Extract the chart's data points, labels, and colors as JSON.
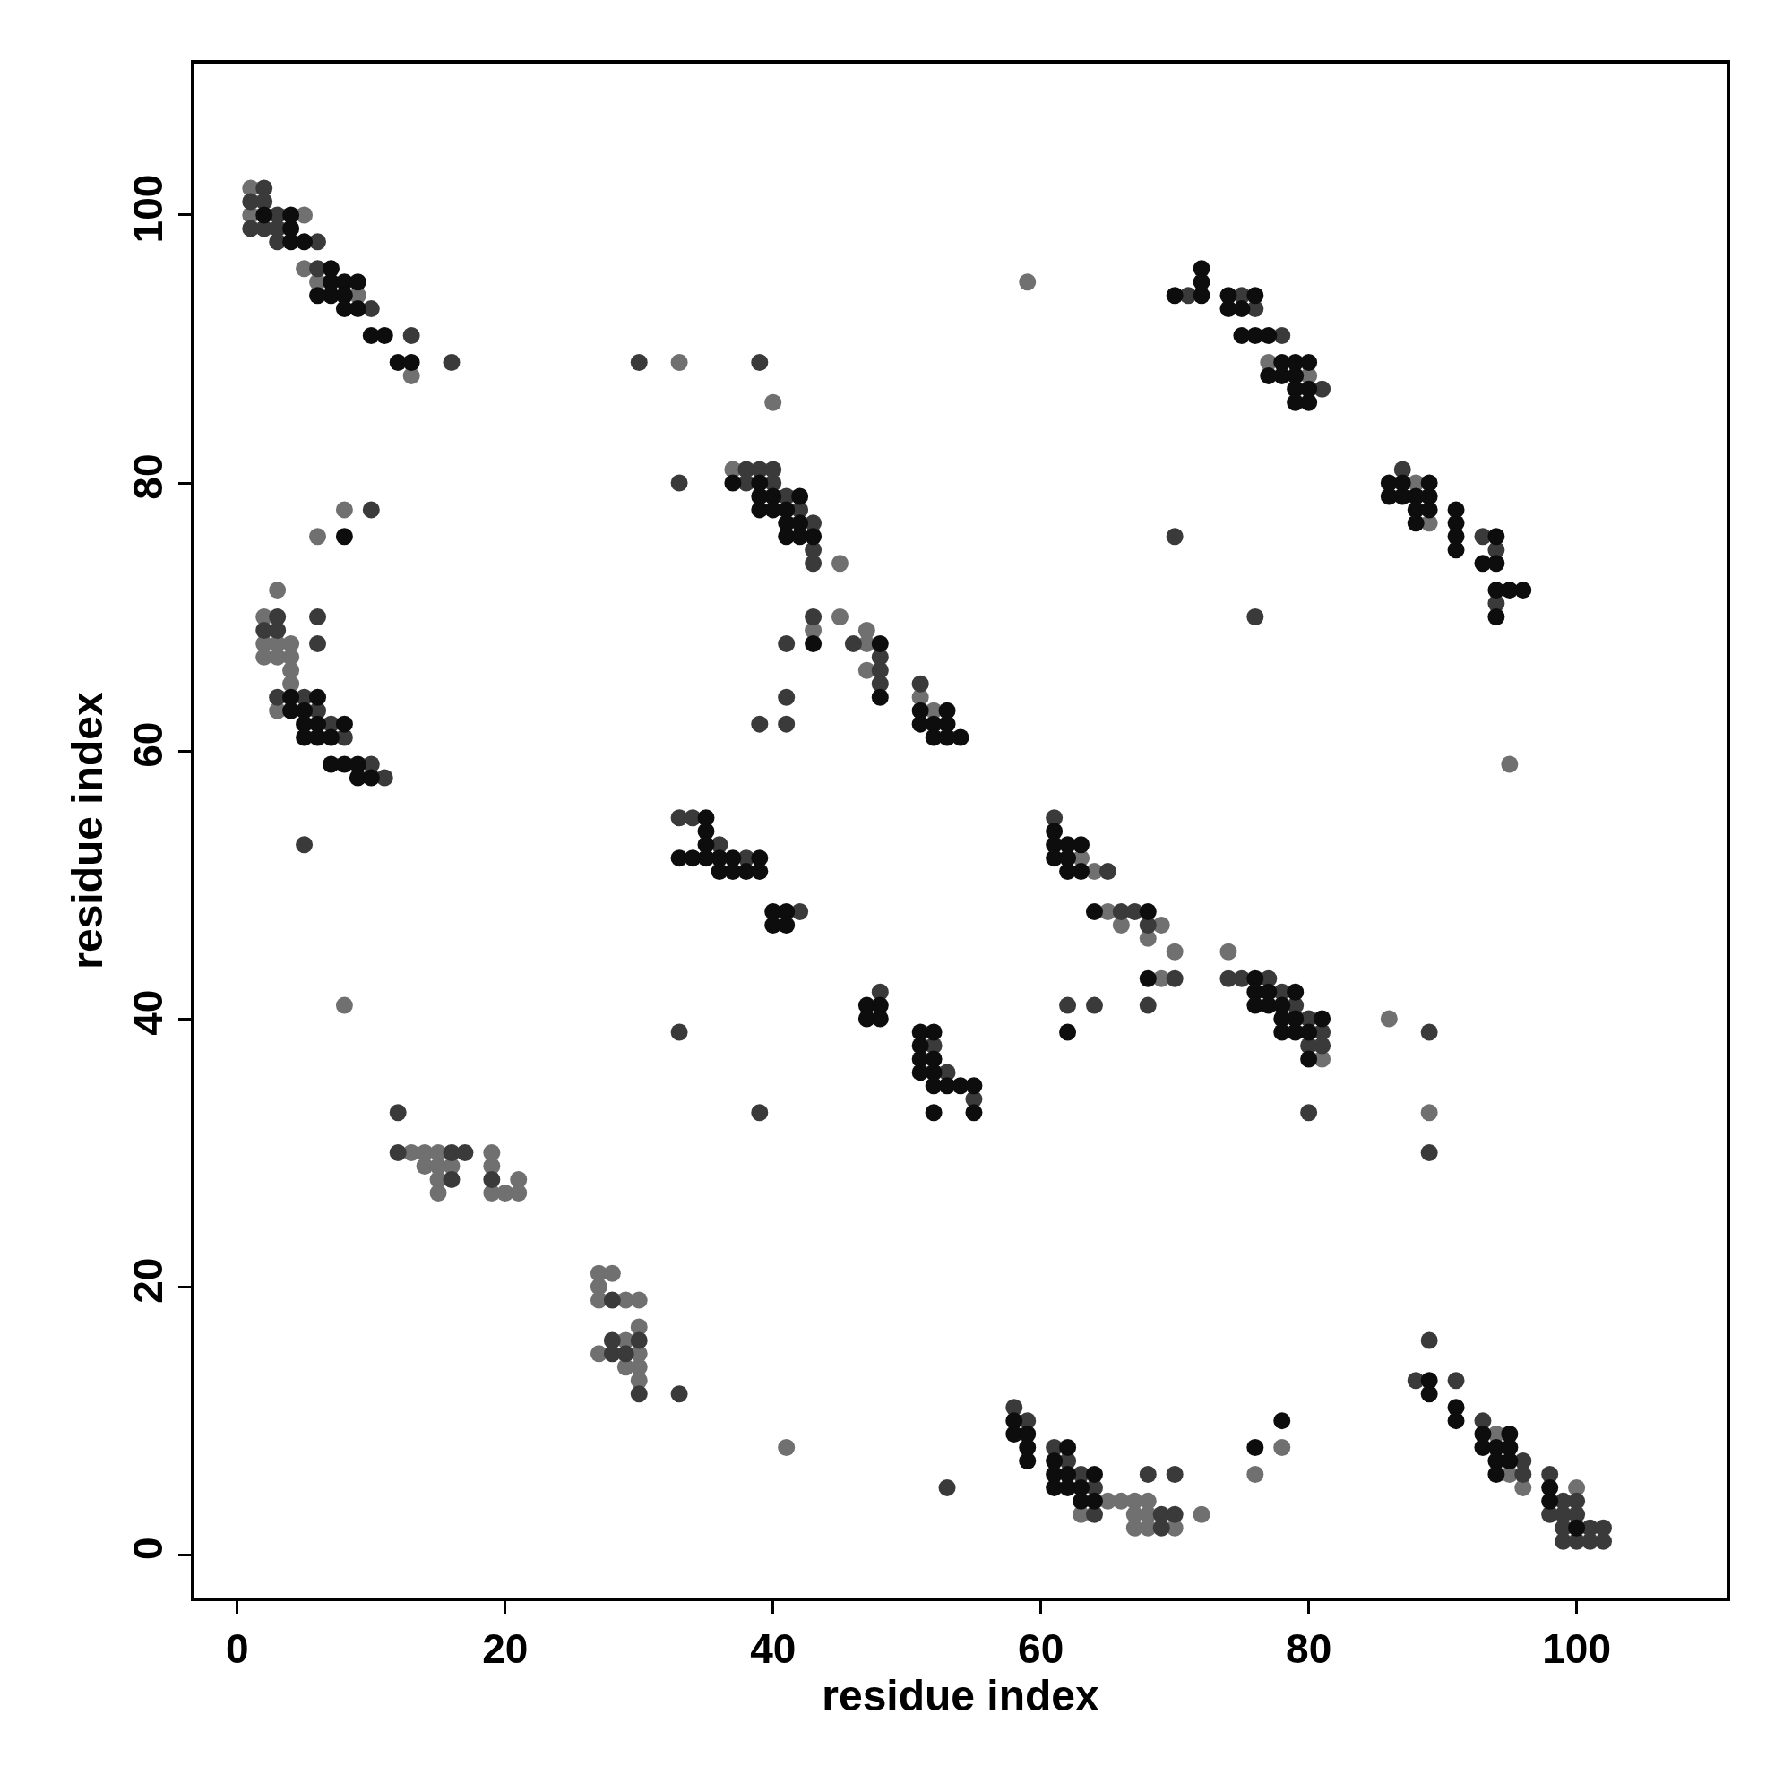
{
  "chart_data": {
    "type": "scatter",
    "xlabel": "residue index",
    "ylabel": "residue index",
    "xlim": [
      -3.2,
      111.2
    ],
    "ylim": [
      -3.2,
      111.3
    ],
    "xticks": [
      0,
      20,
      40,
      60,
      80,
      100
    ],
    "yticks": [
      0,
      20,
      40,
      60,
      80,
      100
    ],
    "marker": "circle",
    "series": [
      {
        "color": "#707070",
        "x": [
          1,
          1,
          5,
          5,
          6,
          9,
          33,
          13,
          40,
          59,
          8,
          6,
          3,
          2,
          2,
          3,
          4,
          2,
          3,
          4,
          4,
          4,
          3,
          77,
          80,
          88,
          89,
          95,
          37,
          45,
          45,
          43,
          47,
          47,
          47,
          51,
          52,
          63,
          64,
          65,
          66,
          69,
          68,
          70,
          74,
          69,
          86,
          81,
          89,
          8,
          13,
          14,
          15,
          19,
          14,
          15,
          16,
          19,
          15,
          21,
          15,
          19,
          20,
          21,
          27,
          28,
          27,
          27,
          29,
          30,
          30,
          29,
          27,
          30,
          29,
          30,
          30,
          41,
          94,
          78,
          76,
          95,
          96,
          100,
          65,
          66,
          67,
          68,
          63,
          67,
          68,
          72,
          67,
          68,
          70
        ],
        "values": [
          102,
          100,
          100,
          96,
          95,
          94,
          89,
          88,
          86,
          95,
          78,
          76,
          72,
          70,
          68,
          68,
          68,
          67,
          67,
          67,
          66,
          65,
          63,
          89,
          88,
          80,
          77,
          59,
          81,
          74,
          70,
          69,
          69,
          68,
          66,
          64,
          63,
          52,
          51,
          48,
          47,
          47,
          46,
          45,
          45,
          43,
          40,
          37,
          33,
          41,
          30,
          30,
          30,
          30,
          29,
          29,
          29,
          29,
          28,
          28,
          27,
          27,
          27,
          27,
          21,
          21,
          20,
          19,
          19,
          19,
          17,
          16,
          15,
          15,
          14,
          14,
          13,
          8,
          9,
          8,
          6,
          6,
          5,
          5,
          4,
          4,
          4,
          4,
          3,
          3,
          3,
          3,
          2,
          2,
          2
        ]
      },
      {
        "color": "#3a3a3a",
        "x": [
          2,
          1,
          2,
          3,
          1,
          2,
          3,
          3,
          6,
          6,
          10,
          13,
          16,
          30,
          39,
          10,
          33,
          3,
          6,
          2,
          3,
          6,
          3,
          5,
          6,
          7,
          8,
          10,
          11,
          5,
          71,
          75,
          76,
          78,
          81,
          87,
          70,
          76,
          93,
          94,
          94,
          38,
          39,
          40,
          38,
          40,
          41,
          42,
          43,
          43,
          43,
          43,
          41,
          46,
          48,
          48,
          48,
          41,
          39,
          41,
          51,
          33,
          34,
          36,
          38,
          65,
          61,
          42,
          48,
          33,
          12,
          39,
          12,
          16,
          17,
          16,
          19,
          28,
          28,
          30,
          28,
          29,
          30,
          33,
          53,
          52,
          55,
          66,
          67,
          68,
          70,
          74,
          75,
          77,
          78,
          62,
          64,
          68,
          79,
          80,
          81,
          89,
          80,
          81,
          80,
          89,
          89,
          88,
          91,
          58,
          59,
          93,
          61,
          62,
          96,
          63,
          68,
          70,
          96,
          98,
          53,
          64,
          99,
          100,
          64,
          69,
          70,
          98,
          99,
          100,
          69,
          99,
          101,
          102,
          99,
          100,
          101,
          102
        ],
        "values": [
          102,
          101,
          101,
          100,
          99,
          99,
          99,
          98,
          98,
          96,
          93,
          91,
          89,
          89,
          89,
          78,
          80,
          70,
          70,
          69,
          69,
          68,
          64,
          64,
          63,
          62,
          61,
          59,
          58,
          53,
          94,
          94,
          93,
          91,
          87,
          81,
          76,
          70,
          76,
          75,
          71,
          81,
          81,
          81,
          80,
          80,
          79,
          78,
          77,
          75,
          74,
          70,
          68,
          68,
          67,
          66,
          65,
          64,
          62,
          62,
          65,
          55,
          55,
          53,
          52,
          51,
          55,
          48,
          42,
          39,
          33,
          33,
          30,
          30,
          30,
          28,
          28,
          19,
          16,
          16,
          15,
          15,
          12,
          12,
          36,
          38,
          34,
          48,
          48,
          47,
          43,
          43,
          43,
          43,
          42,
          41,
          41,
          41,
          41,
          40,
          39,
          39,
          38,
          38,
          33,
          30,
          16,
          13,
          13,
          11,
          10,
          10,
          8,
          7,
          7,
          6,
          6,
          6,
          6,
          6,
          5,
          5,
          4,
          4,
          3,
          3,
          3,
          3,
          3,
          3,
          2,
          2,
          2,
          2,
          1,
          1,
          1,
          1
        ]
      },
      {
        "color": "#0d0d0d",
        "x": [
          2,
          4,
          4,
          4,
          5,
          7,
          7,
          8,
          9,
          7,
          8,
          6,
          8,
          9,
          10,
          11,
          12,
          13,
          8,
          4,
          6,
          4,
          5,
          5,
          6,
          8,
          5,
          6,
          7,
          7,
          8,
          9,
          9,
          10,
          72,
          72,
          70,
          72,
          74,
          76,
          74,
          75,
          75,
          76,
          77,
          78,
          79,
          80,
          77,
          78,
          79,
          79,
          80,
          79,
          80,
          86,
          87,
          89,
          86,
          87,
          88,
          89,
          88,
          89,
          88,
          91,
          91,
          91,
          91,
          94,
          93,
          94,
          94,
          95,
          96,
          94,
          37,
          39,
          39,
          40,
          42,
          39,
          40,
          41,
          41,
          42,
          41,
          42,
          43,
          43,
          48,
          48,
          51,
          53,
          51,
          52,
          53,
          52,
          53,
          54,
          35,
          35,
          35,
          33,
          34,
          35,
          36,
          37,
          39,
          36,
          37,
          38,
          39,
          61,
          61,
          62,
          63,
          61,
          62,
          62,
          63,
          40,
          41,
          40,
          41,
          47,
          48,
          47,
          48,
          51,
          52,
          51,
          51,
          52,
          51,
          52,
          52,
          53,
          54,
          55,
          52,
          55,
          64,
          68,
          68,
          76,
          76,
          77,
          79,
          76,
          77,
          78,
          78,
          79,
          81,
          62,
          78,
          79,
          80,
          80,
          89,
          89,
          91,
          58,
          91,
          58,
          59,
          93,
          95,
          59,
          62,
          76,
          93,
          94,
          95,
          59,
          61,
          94,
          95,
          61,
          62,
          64,
          94,
          61,
          62,
          63,
          98,
          63,
          64,
          98,
          100,
          78
        ],
        "values": [
          100,
          100,
          99,
          98,
          98,
          96,
          95,
          95,
          95,
          94,
          94,
          94,
          93,
          93,
          91,
          91,
          89,
          89,
          76,
          64,
          64,
          63,
          63,
          62,
          62,
          62,
          61,
          61,
          61,
          59,
          59,
          59,
          58,
          58,
          96,
          95,
          94,
          94,
          94,
          94,
          93,
          93,
          91,
          91,
          91,
          89,
          89,
          89,
          88,
          88,
          88,
          87,
          87,
          86,
          86,
          80,
          80,
          80,
          79,
          79,
          79,
          79,
          78,
          78,
          77,
          78,
          77,
          76,
          75,
          76,
          74,
          74,
          72,
          72,
          72,
          70,
          80,
          80,
          79,
          79,
          79,
          78,
          78,
          78,
          77,
          77,
          76,
          76,
          76,
          68,
          68,
          64,
          63,
          63,
          62,
          62,
          62,
          61,
          61,
          61,
          55,
          54,
          53,
          52,
          52,
          52,
          52,
          52,
          52,
          51,
          51,
          51,
          51,
          54,
          53,
          53,
          53,
          52,
          52,
          51,
          51,
          48,
          48,
          47,
          47,
          41,
          41,
          40,
          40,
          39,
          39,
          38,
          37,
          37,
          36,
          36,
          35,
          35,
          35,
          35,
          33,
          33,
          48,
          48,
          43,
          43,
          42,
          42,
          42,
          41,
          41,
          41,
          40,
          40,
          40,
          39,
          39,
          39,
          39,
          37,
          13,
          12,
          11,
          10,
          10,
          9,
          9,
          9,
          9,
          8,
          8,
          8,
          8,
          8,
          8,
          7,
          7,
          7,
          7,
          6,
          6,
          6,
          6,
          5,
          5,
          5,
          5,
          4,
          4,
          4,
          2,
          10
        ]
      }
    ]
  }
}
